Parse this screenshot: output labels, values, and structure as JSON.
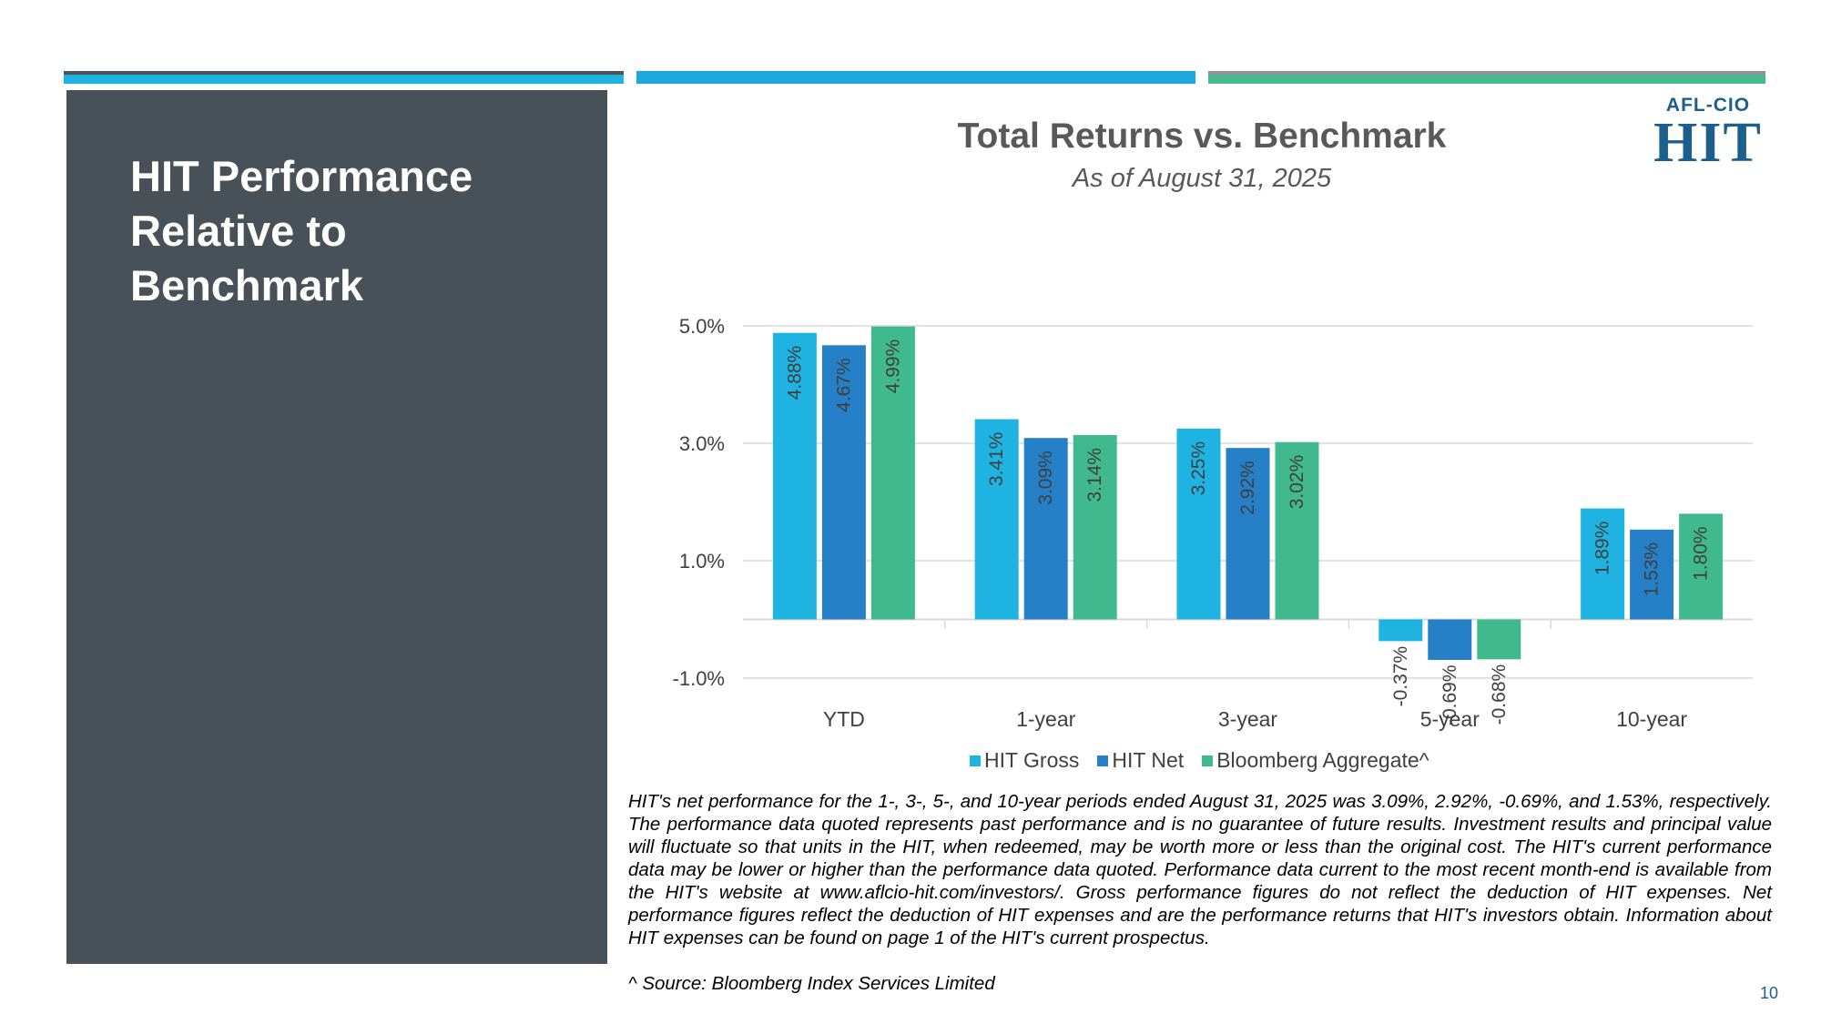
{
  "slide": {
    "heading": "HIT Performance\nRelative to\nBenchmark",
    "page_number": "10"
  },
  "logo": {
    "top_text": "AFL-CIO",
    "bottom_text": "HIT"
  },
  "colors": {
    "hit_gross": "#1fb3e2",
    "hit_net": "#2580c7",
    "bloomberg": "#40b98f",
    "panel": "#485157"
  },
  "chart_data": {
    "type": "bar",
    "title": "Total Returns vs. Benchmark",
    "subtitle": "As of August 31, 2025",
    "categories": [
      "YTD",
      "1-year",
      "3-year",
      "5-year",
      "10-year"
    ],
    "series": [
      {
        "name": "HIT Gross",
        "values": [
          4.88,
          3.41,
          3.25,
          -0.37,
          1.89
        ],
        "labels": [
          "4.88%",
          "3.41%",
          "3.25%",
          "-0.37%",
          "1.89%"
        ]
      },
      {
        "name": "HIT Net",
        "values": [
          4.67,
          3.09,
          2.92,
          -0.69,
          1.53
        ],
        "labels": [
          "4.67%",
          "3.09%",
          "2.92%",
          "-0.69%",
          "1.53%"
        ]
      },
      {
        "name": "Bloomberg Aggregate^",
        "values": [
          4.99,
          3.14,
          3.02,
          -0.68,
          1.8
        ],
        "labels": [
          "4.99%",
          "3.14%",
          "3.02%",
          "-0.68%",
          "1.80%"
        ]
      }
    ],
    "yticks": [
      "5.0%",
      "3.0%",
      "1.0%",
      "-1.0%"
    ],
    "ytick_values": [
      5.0,
      3.0,
      1.0,
      -1.0
    ],
    "ylim": [
      -1.0,
      5.0
    ],
    "grid": true,
    "legend_position": "bottom"
  },
  "footnote": "HIT's net performance for the 1-, 3-, 5-, and 10-year periods ended August 31, 2025 was 3.09%, 2.92%, -0.69%, and 1.53%, respectively. The performance data quoted represents past performance and is no guarantee of future results. Investment results and principal value will fluctuate so that units in the HIT, when redeemed, may be worth more or less than the original cost. The HIT's current performance data may be lower or higher than the performance data quoted. Performance data current to the most recent month-end is available from the HIT's website at www.aflcio-hit.com/investors/. Gross performance figures do not reflect the deduction of HIT expenses.  Net performance figures reflect the deduction of HIT expenses and are the performance returns that HIT's investors obtain.  Information about HIT expenses can be found on page 1 of the HIT's current prospectus.",
  "source": "^ Source: Bloomberg Index Services Limited"
}
